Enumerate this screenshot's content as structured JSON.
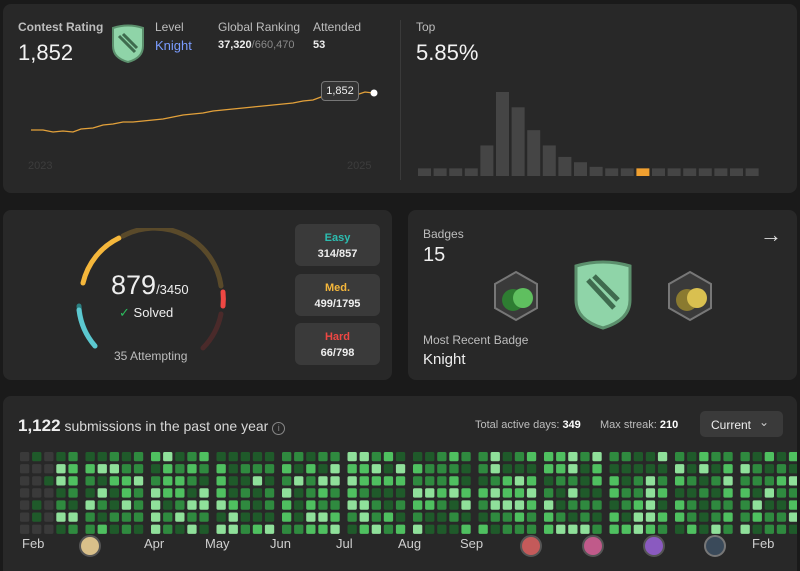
{
  "contest": {
    "rating_label": "Contest Rating",
    "rating_value": "1,852",
    "level_label": "Level",
    "level_value": "Knight",
    "global_label": "Global Ranking",
    "global_rank": "37,320",
    "global_total": "/660,470",
    "attended_label": "Attended",
    "attended_value": "53",
    "tooltip_value": "1,852",
    "x_start": "2023",
    "x_end": "2025",
    "top_label": "Top",
    "top_value": "5.85%",
    "histogram": [
      1,
      1,
      1,
      1,
      4,
      11,
      9,
      6,
      4,
      2.5,
      1.8,
      1.2,
      1,
      1,
      1,
      1,
      1,
      1,
      1,
      1,
      1,
      1
    ],
    "histogram_highlight_index": 14
  },
  "solved": {
    "count": "879",
    "total": "/3450",
    "solved_label": "Solved",
    "attempting": "35 Attempting",
    "easy_label": "Easy",
    "easy_value": "314/857",
    "med_label": "Med.",
    "med_value": "499/1795",
    "hard_label": "Hard",
    "hard_value": "66/798"
  },
  "badges": {
    "label": "Badges",
    "count": "15",
    "recent_label": "Most Recent Badge",
    "recent_value": "Knight"
  },
  "submissions": {
    "count": "1,122",
    "text": "submissions in the past one year",
    "active_label": "Total active days:",
    "active_value": "349",
    "streak_label": "Max streak:",
    "streak_value": "210",
    "dropdown_value": "Current",
    "months": [
      "Feb",
      "Apr",
      "May",
      "Jun",
      "Jul",
      "Aug",
      "Sep",
      "Feb"
    ]
  },
  "colors": {
    "accent_orange": "#f0a030",
    "easy": "#2cbdb0",
    "med": "#f5b73b",
    "hard": "#ef4743",
    "knight_blue": "#7a9cff"
  }
}
